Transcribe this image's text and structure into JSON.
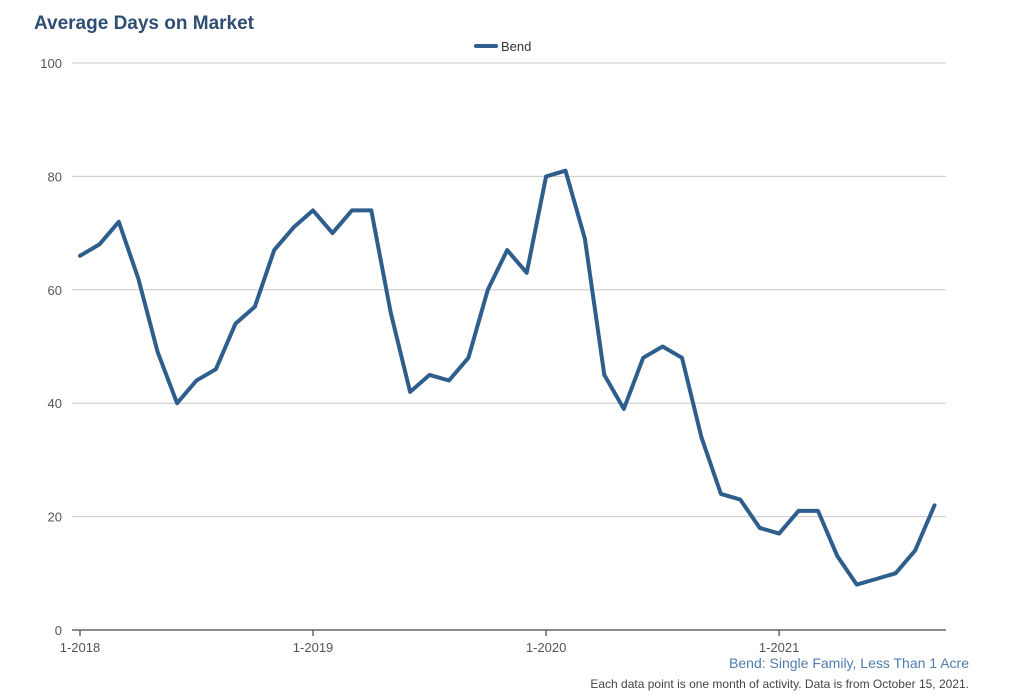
{
  "colors": {
    "series": "#2e5e8c",
    "title": "#2e4e73",
    "subtitle": "#4f7cac",
    "grid": "#c8c8c8",
    "axis": "#666666"
  },
  "footer": {
    "subtitle": "Bend: Single Family, Less Than 1 Acre",
    "note": "Each data point is one month of activity. Data is from October 15, 2021."
  },
  "chart_data": {
    "type": "line",
    "title": "Average Days on Market",
    "xlabel": "",
    "ylabel": "",
    "ylim": [
      0,
      100
    ],
    "yticks": [
      0,
      20,
      40,
      60,
      80,
      100
    ],
    "xticks": [
      "1-2018",
      "1-2019",
      "1-2020",
      "1-2021"
    ],
    "grid": true,
    "legend": "top-center",
    "x_start": "1-2018",
    "x_interval": "month",
    "series": [
      {
        "name": "Bend",
        "values": [
          66,
          68,
          72,
          62,
          49,
          40,
          44,
          46,
          54,
          57,
          67,
          71,
          74,
          70,
          74,
          74,
          56,
          42,
          45,
          44,
          48,
          60,
          67,
          63,
          80,
          81,
          69,
          45,
          39,
          48,
          50,
          48,
          34,
          24,
          23,
          18,
          17,
          21,
          21,
          13,
          8,
          9,
          10,
          14,
          22
        ]
      }
    ]
  }
}
